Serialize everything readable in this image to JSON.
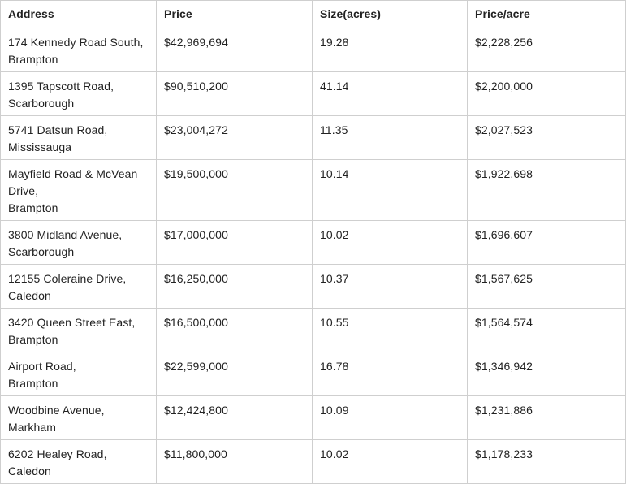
{
  "table": {
    "headers": [
      "Address",
      "Price",
      "Size(acres)",
      "Price/acre"
    ],
    "rows": [
      {
        "address": [
          "174 Kennedy Road South,",
          "Brampton"
        ],
        "price": "$42,969,694",
        "size": "19.28",
        "price_per_acre": "$2,228,256"
      },
      {
        "address": [
          "1395 Tapscott Road,",
          "Scarborough"
        ],
        "price": "$90,510,200",
        "size": "41.14",
        "price_per_acre": "$2,200,000"
      },
      {
        "address": [
          "5741 Datsun Road,",
          "Mississauga"
        ],
        "price": "$23,004,272",
        "size": "11.35",
        "price_per_acre": "$2,027,523"
      },
      {
        "address": [
          "Mayfield Road & McVean",
          "Drive,",
          "Brampton"
        ],
        "price": "$19,500,000",
        "size": "10.14",
        "price_per_acre": "$1,922,698"
      },
      {
        "address": [
          "3800 Midland Avenue,",
          "Scarborough"
        ],
        "price": "$17,000,000",
        "size": "10.02",
        "price_per_acre": "$1,696,607"
      },
      {
        "address": [
          "12155 Coleraine Drive,",
          "Caledon"
        ],
        "price": "$16,250,000",
        "size": "10.37",
        "price_per_acre": "$1,567,625"
      },
      {
        "address": [
          "3420 Queen Street East,",
          "Brampton"
        ],
        "price": "$16,500,000",
        "size": "10.55",
        "price_per_acre": "$1,564,574"
      },
      {
        "address": [
          "Airport Road,",
          "Brampton"
        ],
        "price": "$22,599,000",
        "size": "16.78",
        "price_per_acre": "$1,346,942"
      },
      {
        "address": [
          "Woodbine Avenue,",
          "Markham"
        ],
        "price": "$12,424,800",
        "size": "10.09",
        "price_per_acre": "$1,231,886"
      },
      {
        "address": [
          "6202 Healey Road,",
          "Caledon"
        ],
        "price": "$11,800,000",
        "size": "10.02",
        "price_per_acre": "$1,178,233"
      }
    ]
  }
}
